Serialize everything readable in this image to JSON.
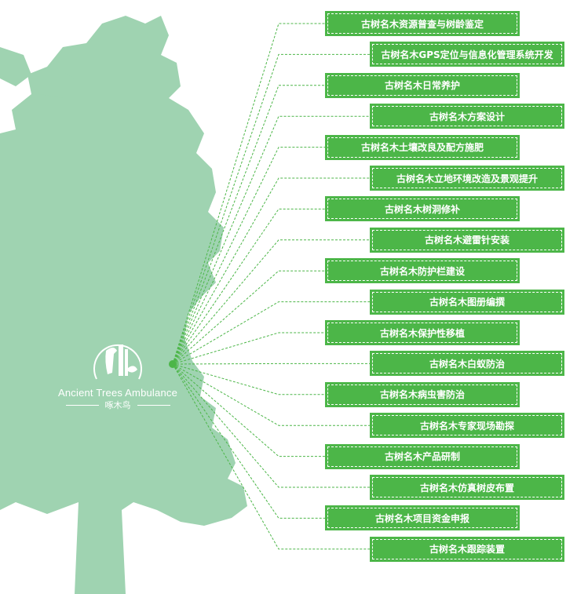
{
  "colors": {
    "tree": "#9fd3b1",
    "box": "#4cb648",
    "line": "#4cb648"
  },
  "logo": {
    "name_en": "Ancient Trees Ambulance",
    "name_cn": "啄木鸟",
    "icon": "woodpecker-icon"
  },
  "services": [
    "古树名木资源普查与树龄鉴定",
    "古树名木GPS定位与信息化管理系统开发",
    "古树名木日常养护",
    "古树名木方案设计",
    "古树名木土壤改良及配方施肥",
    "古树名木立地环境改造及景观提升",
    "古树名木树洞修补",
    "古树名木避雷针安装",
    "古树名木防护栏建设",
    "古树名木图册编撰",
    "古树名木保护性移植",
    "古树名木白蚁防治",
    "古树名木病虫害防治",
    "古树名木专家现场勘探",
    "古树名木产品研制",
    "古树名木仿真树皮布置",
    "古树名木项目资金申报",
    "古树名木跟踪装置"
  ]
}
